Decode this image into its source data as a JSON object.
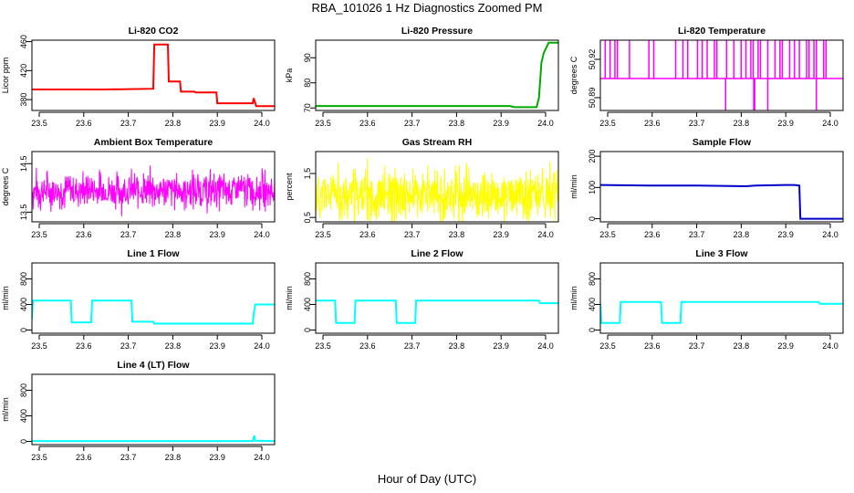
{
  "page": {
    "title": "RBA_101026  1 Hz Diagnostics Zoomed PM",
    "xlabel": "Hour of Day (UTC)"
  },
  "chart_data": [
    {
      "type": "line",
      "title": "Li-820 CO2",
      "ylabel": "Licor ppm",
      "color": "#ff0000",
      "xlim": [
        23.5,
        24.0
      ],
      "ylim": [
        365,
        462
      ],
      "xticks": [
        "23.5",
        "23.6",
        "23.7",
        "23.8",
        "23.9",
        "24.0"
      ],
      "yticks": [
        "380",
        "420",
        "460"
      ],
      "series": [
        {
          "x": [
            23.5,
            23.65,
            23.75,
            23.752,
            23.78,
            23.782,
            23.805,
            23.807,
            23.835,
            23.837,
            23.88,
            23.882,
            23.955,
            23.957,
            23.962,
            23.964,
            24.0
          ],
          "y": [
            394,
            394,
            395,
            456,
            456,
            405,
            405,
            391,
            391,
            390,
            390,
            375,
            375,
            382,
            371,
            371,
            371
          ]
        }
      ]
    },
    {
      "type": "line",
      "title": "Li-820 Pressure",
      "ylabel": "kPa",
      "color": "#00aa00",
      "xlim": [
        23.5,
        24.0
      ],
      "ylim": [
        69,
        97
      ],
      "xticks": [
        "23.5",
        "23.6",
        "23.7",
        "23.8",
        "23.9",
        "24.0"
      ],
      "yticks": [
        "70",
        "80",
        "90"
      ],
      "series": [
        {
          "x": [
            23.5,
            23.9,
            23.91,
            23.955,
            23.96,
            23.965,
            23.97,
            23.975,
            23.98,
            23.99,
            24.0
          ],
          "y": [
            70.8,
            70.8,
            70.3,
            70.3,
            74,
            88,
            92,
            94,
            96,
            96,
            96
          ]
        }
      ]
    },
    {
      "type": "line",
      "title": "Li-820 Temperature",
      "ylabel": "degrees C",
      "color": "#ff00ff",
      "xlim": [
        23.5,
        24.0
      ],
      "ylim": [
        50.88,
        50.935
      ],
      "xticks": [
        "23.5",
        "23.6",
        "23.7",
        "23.8",
        "23.9",
        "24.0"
      ],
      "yticks": [
        "50.89",
        "50.92"
      ],
      "extra_ytick_labels": [
        "50.89",
        "50.92"
      ],
      "baseline": 50.905,
      "upper_level": 50.935,
      "lower_level": 50.88,
      "up_spikes_x": [
        23.51,
        23.52,
        23.53,
        23.535,
        23.56,
        23.6,
        23.61,
        23.655,
        23.67,
        23.68,
        23.7,
        23.71,
        23.72,
        23.735,
        23.74,
        23.76,
        23.775,
        23.79,
        23.8,
        23.81,
        23.815,
        23.825,
        23.83,
        23.845,
        23.86,
        23.87,
        23.875,
        23.89,
        23.9,
        23.91,
        23.925,
        23.93,
        23.94,
        23.945,
        23.96,
        23.965
      ],
      "down_spikes_x": [
        23.758,
        23.816,
        23.818,
        23.845,
        23.945
      ]
    },
    {
      "type": "line",
      "title": "Ambient Box Temperature",
      "ylabel": "degrees C",
      "color": "#ff00ff",
      "xlim": [
        23.5,
        24.0
      ],
      "ylim": [
        13.3,
        14.75
      ],
      "xticks": [
        "23.5",
        "23.6",
        "23.7",
        "23.8",
        "23.9",
        "24.0"
      ],
      "yticks": [
        "13.5",
        "14.5"
      ],
      "noise": {
        "center": 13.95,
        "amplitude": 0.55,
        "seed": 7
      }
    },
    {
      "type": "line",
      "title": "Gas Stream RH",
      "ylabel": "percent",
      "color": "#ffff00",
      "xlim": [
        23.5,
        24.0
      ],
      "ylim": [
        0.4,
        2.0
      ],
      "xticks": [
        "23.5",
        "23.6",
        "23.7",
        "23.8",
        "23.9",
        "24.0"
      ],
      "yticks": [
        "0.5",
        "1.5"
      ],
      "noise": {
        "center": 1.0,
        "amplitude": 0.9,
        "seed": 11
      }
    },
    {
      "type": "line",
      "title": "Sample Flow",
      "ylabel": "ml/min",
      "color": "#0000cc",
      "xlim": [
        23.5,
        24.0
      ],
      "ylim": [
        -10,
        215
      ],
      "xticks": [
        "23.5",
        "23.6",
        "23.7",
        "23.8",
        "23.9",
        "24.0"
      ],
      "yticks": [
        "0",
        "100",
        "200"
      ],
      "series": [
        {
          "x": [
            23.5,
            23.6,
            23.7,
            23.75,
            23.8,
            23.82,
            23.88,
            23.9,
            23.91,
            23.912,
            23.92,
            24.0
          ],
          "y": [
            108,
            106,
            106,
            105,
            104,
            106,
            108,
            108,
            106,
            0,
            0,
            0
          ]
        }
      ]
    },
    {
      "type": "line",
      "title": "Line 1 Flow",
      "ylabel": "ml/min",
      "color": "#00ffff",
      "xlim": [
        23.5,
        24.0
      ],
      "ylim": [
        -50,
        1050
      ],
      "xticks": [
        "23.5",
        "23.6",
        "23.7",
        "23.8",
        "23.9",
        "24.0"
      ],
      "yticks": [
        "0",
        "400",
        "800"
      ],
      "series": [
        {
          "x": [
            23.5,
            23.502,
            23.58,
            23.582,
            23.622,
            23.624,
            23.705,
            23.707,
            23.75,
            23.752,
            23.955,
            23.957,
            23.96,
            24.0
          ],
          "y": [
            180,
            460,
            460,
            120,
            120,
            460,
            460,
            130,
            130,
            100,
            100,
            250,
            400,
            400
          ]
        }
      ]
    },
    {
      "type": "line",
      "title": "Line 2 Flow",
      "ylabel": "ml/min",
      "color": "#00ffff",
      "xlim": [
        23.5,
        24.0
      ],
      "ylim": [
        -50,
        1050
      ],
      "xticks": [
        "23.5",
        "23.6",
        "23.7",
        "23.8",
        "23.9",
        "24.0"
      ],
      "yticks": [
        "0",
        "400",
        "800"
      ],
      "series": [
        {
          "x": [
            23.5,
            23.54,
            23.542,
            23.58,
            23.582,
            23.665,
            23.667,
            23.705,
            23.707,
            23.96,
            23.962,
            24.0
          ],
          "y": [
            460,
            460,
            110,
            110,
            460,
            460,
            110,
            110,
            460,
            460,
            420,
            420
          ]
        }
      ]
    },
    {
      "type": "line",
      "title": "Line 3 Flow",
      "ylabel": "ml/min",
      "color": "#00ffff",
      "xlim": [
        23.5,
        24.0
      ],
      "ylim": [
        -50,
        1050
      ],
      "xticks": [
        "23.5",
        "23.6",
        "23.7",
        "23.8",
        "23.9",
        "24.0"
      ],
      "yticks": [
        "0",
        "400",
        "800"
      ],
      "series": [
        {
          "x": [
            23.5,
            23.502,
            23.54,
            23.542,
            23.625,
            23.627,
            23.665,
            23.667,
            23.95,
            23.952,
            24.0
          ],
          "y": [
            420,
            110,
            110,
            440,
            440,
            110,
            110,
            440,
            440,
            410,
            410
          ]
        }
      ]
    },
    {
      "type": "line",
      "title": "Line 4 (LT) Flow",
      "ylabel": "ml/min",
      "color": "#00ffff",
      "xlim": [
        23.5,
        24.0
      ],
      "ylim": [
        -50,
        1050
      ],
      "xticks": [
        "23.5",
        "23.6",
        "23.7",
        "23.8",
        "23.9",
        "24.0"
      ],
      "yticks": [
        "0",
        "400",
        "800"
      ],
      "series": [
        {
          "x": [
            23.5,
            23.955,
            23.957,
            23.958,
            23.96,
            24.0
          ],
          "y": [
            5,
            5,
            60,
            90,
            10,
            5
          ]
        }
      ]
    }
  ]
}
